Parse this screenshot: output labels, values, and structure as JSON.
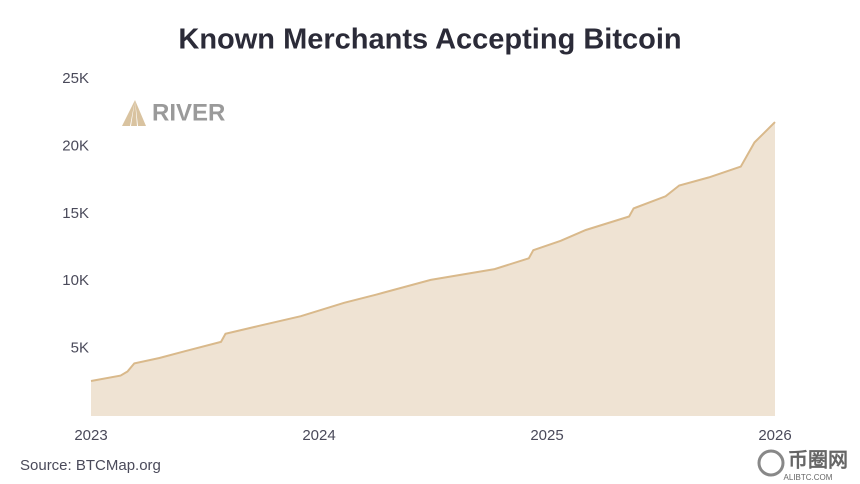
{
  "chart_data": {
    "type": "area",
    "title": "Known Merchants Accepting Bitcoin",
    "source": "Source: BTCMap.org",
    "logo": "RIVER",
    "watermark": "币圈网",
    "watermark_sub": "ALIBTC.COM",
    "color": "#d9b98b",
    "fill": "#efe3d3",
    "x": [
      2023.0,
      2023.13,
      2023.16,
      2023.19,
      2023.3,
      2023.41,
      2023.57,
      2023.59,
      2023.74,
      2023.92,
      2024.11,
      2024.25,
      2024.49,
      2024.77,
      2024.92,
      2024.94,
      2025.06,
      2025.17,
      2025.36,
      2025.38,
      2025.52,
      2025.58,
      2025.71,
      2025.85,
      2025.91,
      2026.0
    ],
    "values": [
      2600,
      3000,
      3300,
      3900,
      4300,
      4800,
      5500,
      6100,
      6700,
      7400,
      8400,
      9000,
      10100,
      10900,
      11700,
      12300,
      13000,
      13800,
      14800,
      15400,
      16300,
      17100,
      17700,
      18500,
      20300,
      21800
    ],
    "xlim": [
      2023,
      2026
    ],
    "xticks": [
      2023,
      2024,
      2025,
      2026
    ],
    "ylim": [
      0,
      25000
    ],
    "yticks": [
      {
        "value": 5000,
        "label": "5K"
      },
      {
        "value": 10000,
        "label": "10K"
      },
      {
        "value": 15000,
        "label": "15K"
      },
      {
        "value": 20000,
        "label": "20K"
      },
      {
        "value": 25000,
        "label": "25K"
      }
    ]
  }
}
